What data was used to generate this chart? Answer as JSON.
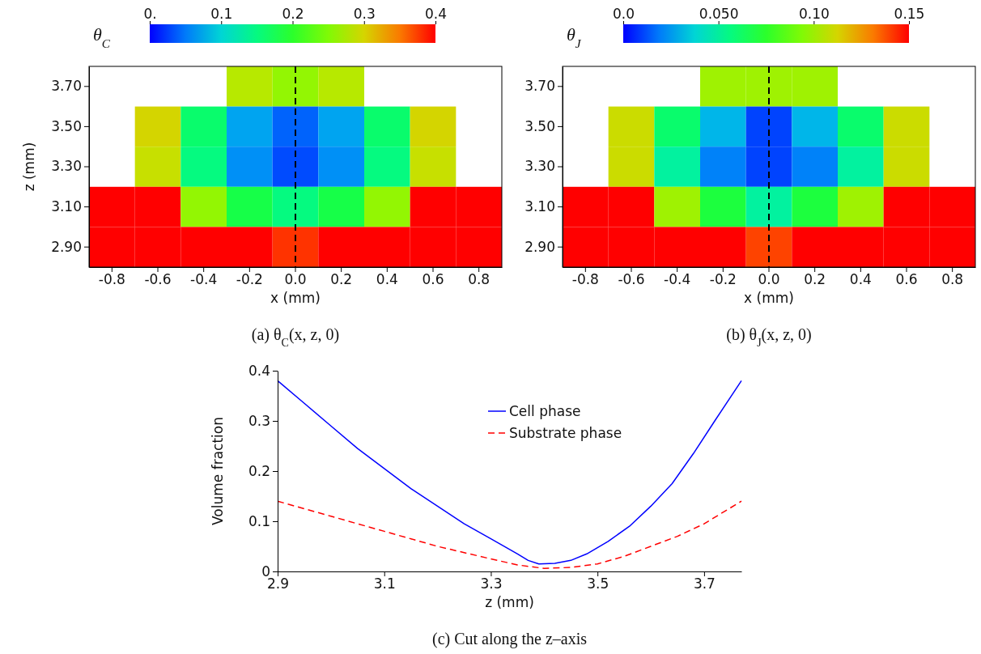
{
  "chart_data": [
    {
      "type": "heatmap",
      "clabel": "θ$_{C}$",
      "xlabel": "x (mm)",
      "ylabel": "z (mm)",
      "annotations": [
        "(a) θ$_{C}$(x, z, 0)"
      ],
      "categories": [
        "-0.8",
        "-0.6",
        "-0.4",
        "-0.2",
        "0.0",
        "0.2",
        "0.4",
        "0.6",
        "0.8"
      ],
      "y_categories": [
        "3.70",
        "3.50",
        "3.30",
        "3.10",
        "2.90"
      ],
      "clim": [
        0,
        0.4
      ],
      "cticks": [
        {
          "value": 0,
          "label": "0."
        },
        0.1,
        0.2,
        0.3,
        0.4
      ],
      "ref_lines": [
        {
          "axis": "x",
          "value": "0.0",
          "color": "#000000",
          "line_style": "dashed"
        }
      ],
      "cells": [
        [
          null,
          null,
          null,
          0.28,
          0.26,
          0.28,
          null,
          null,
          null
        ],
        [
          null,
          0.3,
          0.16,
          0.07,
          0.04,
          0.07,
          0.16,
          0.3,
          null
        ],
        [
          null,
          0.29,
          0.15,
          0.06,
          0.03,
          0.06,
          0.15,
          0.29,
          null
        ],
        [
          0.4,
          0.4,
          0.26,
          0.18,
          0.15,
          0.18,
          0.26,
          0.4,
          0.4
        ],
        [
          0.4,
          0.4,
          0.4,
          0.4,
          0.38,
          0.4,
          0.4,
          0.4,
          0.4
        ]
      ]
    },
    {
      "type": "heatmap",
      "clabel": "θ$_{J}$",
      "xlabel": "x (mm)",
      "annotations": [
        "(b) θ$_{J}$(x, z, 0)"
      ],
      "categories": [
        "-0.8",
        "-0.6",
        "-0.4",
        "-0.2",
        "0.0",
        "0.2",
        "0.4",
        "0.6",
        "0.8"
      ],
      "y_categories": [
        "3.70",
        "3.50",
        "3.30",
        "3.10",
        "2.90"
      ],
      "clim": [
        0,
        0.15
      ],
      "cticks": [
        {
          "value": 0,
          "label": "0.0"
        },
        {
          "value": 0.05,
          "label": "0.050"
        },
        {
          "value": 0.1,
          "label": "0.10"
        },
        0.15
      ],
      "ref_lines": [
        {
          "axis": "x",
          "value": "0.0",
          "color": "#000000",
          "line_style": "dashed"
        }
      ],
      "cells": [
        [
          null,
          null,
          null,
          0.1,
          0.1,
          0.1,
          null,
          null,
          null
        ],
        [
          null,
          0.11,
          0.06,
          0.03,
          0.01,
          0.03,
          0.06,
          0.11,
          null
        ],
        [
          null,
          0.11,
          0.05,
          0.02,
          0.01,
          0.02,
          0.05,
          0.11,
          null
        ],
        [
          0.15,
          0.15,
          0.1,
          0.07,
          0.05,
          0.07,
          0.1,
          0.15,
          0.15
        ],
        [
          0.15,
          0.15,
          0.15,
          0.15,
          0.14,
          0.15,
          0.15,
          0.15,
          0.15
        ]
      ]
    },
    {
      "type": "line",
      "xlabel": "z (mm)",
      "ylabel": "Volume fraction",
      "annotations": [
        "(c) Cut along the z–axis"
      ],
      "xlim": [
        2.9,
        3.77
      ],
      "ylim": [
        0,
        0.4
      ],
      "xticks": [
        2.9,
        3.1,
        3.3,
        3.5,
        3.7
      ],
      "yticks": [
        0,
        0.1,
        0.2,
        0.3,
        0.4
      ],
      "legend": "top",
      "series": [
        {
          "name": "Cell phase",
          "color": "#0000ff",
          "line_style": "solid",
          "x": [
            2.9,
            2.95,
            3.0,
            3.05,
            3.1,
            3.15,
            3.2,
            3.25,
            3.3,
            3.35,
            3.37,
            3.39,
            3.42,
            3.45,
            3.48,
            3.52,
            3.56,
            3.6,
            3.64,
            3.68,
            3.72,
            3.77
          ],
          "values": [
            0.38,
            0.335,
            0.29,
            0.245,
            0.205,
            0.165,
            0.13,
            0.095,
            0.065,
            0.035,
            0.022,
            0.015,
            0.016,
            0.022,
            0.035,
            0.06,
            0.09,
            0.13,
            0.175,
            0.235,
            0.3,
            0.38
          ]
        },
        {
          "name": "Substrate phase",
          "color": "#ff0000",
          "line_style": "dashed",
          "x": [
            2.9,
            3.0,
            3.1,
            3.2,
            3.3,
            3.35,
            3.4,
            3.45,
            3.5,
            3.55,
            3.6,
            3.65,
            3.7,
            3.77
          ],
          "values": [
            0.14,
            0.11,
            0.08,
            0.05,
            0.025,
            0.013,
            0.006,
            0.008,
            0.015,
            0.03,
            0.05,
            0.07,
            0.095,
            0.14
          ]
        }
      ]
    }
  ]
}
